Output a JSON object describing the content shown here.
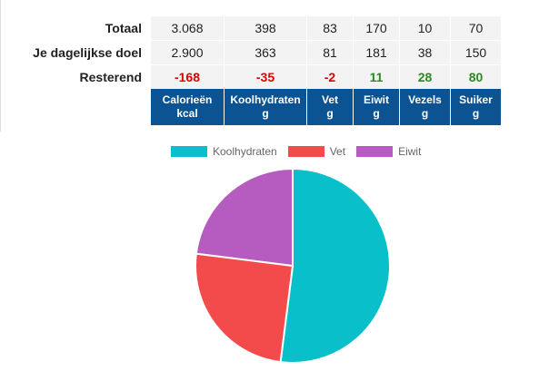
{
  "table": {
    "rows": [
      {
        "label": "Totaal",
        "values": [
          "3.068",
          "398",
          "83",
          "170",
          "10",
          "70"
        ]
      },
      {
        "label": "Je dagelijkse doel",
        "values": [
          "2.900",
          "363",
          "81",
          "181",
          "38",
          "150"
        ]
      },
      {
        "label": "Resterend",
        "values": [
          "-168",
          "-35",
          "-2",
          "11",
          "28",
          "80"
        ]
      }
    ],
    "headers": [
      {
        "name": "Calorieën",
        "unit": "kcal"
      },
      {
        "name": "Koolhydraten",
        "unit": "g"
      },
      {
        "name": "Vet",
        "unit": "g"
      },
      {
        "name": "Eiwit",
        "unit": "g"
      },
      {
        "name": "Vezels",
        "unit": "g"
      },
      {
        "name": "Suiker",
        "unit": "g"
      }
    ]
  },
  "chart_data": {
    "type": "pie",
    "categories": [
      "Koolhydraten",
      "Vet",
      "Eiwit"
    ],
    "values": [
      52,
      25,
      23
    ],
    "colors": [
      "#09bfc9",
      "#f34a4c",
      "#b65cc0"
    ],
    "legend_position": "top"
  }
}
